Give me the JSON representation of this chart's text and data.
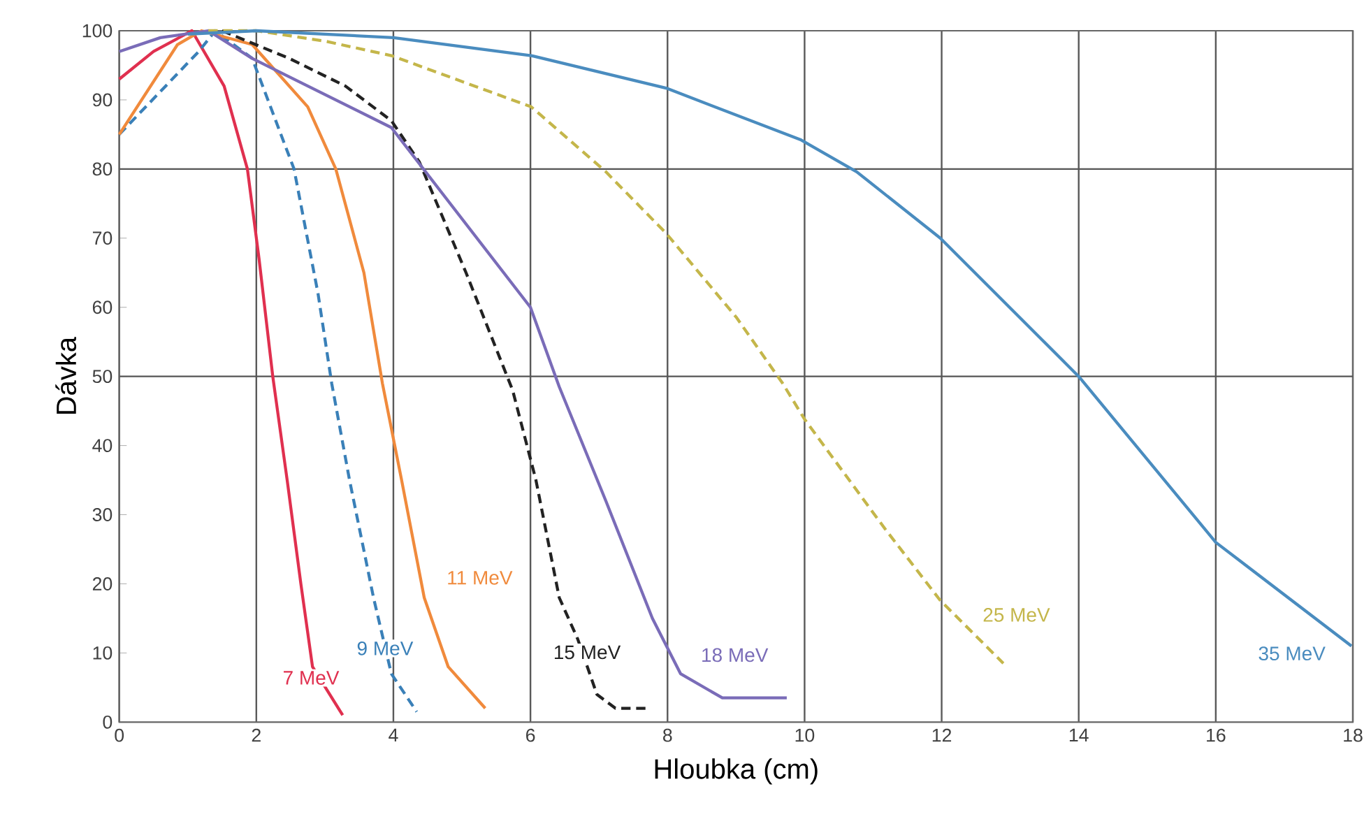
{
  "chart_data": {
    "type": "line",
    "xlabel": "Hloubka (cm)",
    "ylabel": "Dávka",
    "xlim": [
      0,
      18
    ],
    "ylim": [
      0,
      100
    ],
    "xticks": [
      0,
      2,
      4,
      6,
      8,
      10,
      12,
      14,
      16,
      18
    ],
    "yticks": [
      0,
      10,
      20,
      30,
      40,
      50,
      60,
      70,
      80,
      90,
      100
    ],
    "grid": "x",
    "ref_lines": [
      {
        "axis": "y",
        "value": 50,
        "color": "#555555"
      },
      {
        "axis": "y",
        "value": 80,
        "color": "#555555"
      }
    ],
    "series": [
      {
        "name": "7 MeV",
        "color": "#e0304f",
        "line_style": "solid",
        "x": [
          0,
          0.5,
          1.06,
          1.53,
          1.87,
          2.04,
          2.24,
          2.45,
          2.65,
          2.82,
          3.26
        ],
        "values": [
          93,
          97,
          100,
          92,
          80,
          67,
          50,
          35,
          20,
          8,
          1
        ]
      },
      {
        "name": "9 MeV",
        "color": "#3a80b8",
        "line_style": "dashed",
        "x": [
          0,
          1.16,
          1.4,
          1.94,
          2.55,
          2.9,
          3.1,
          3.36,
          3.71,
          3.97,
          4.34
        ],
        "values": [
          85,
          97,
          100,
          96,
          80,
          62,
          49,
          35,
          18,
          7,
          1.5
        ]
      },
      {
        "name": "11 MeV",
        "color": "#f08a3c",
        "line_style": "solid",
        "x": [
          0,
          0.85,
          1.2,
          1.94,
          2.75,
          3.16,
          3.57,
          3.84,
          4.12,
          4.45,
          4.8,
          5.34
        ],
        "values": [
          85,
          98,
          100,
          98,
          89,
          80,
          65,
          49,
          35,
          18,
          8,
          2
        ]
      },
      {
        "name": "15 MeV",
        "color": "#222222",
        "line_style": "dashed",
        "x": [
          1.5,
          2.48,
          3.3,
          3.97,
          4.38,
          5.06,
          5.74,
          6.08,
          6.42,
          6.69,
          6.97,
          7.24,
          7.75
        ],
        "values": [
          100,
          96,
          92,
          87,
          81,
          65,
          48,
          35,
          18,
          12,
          4,
          2,
          2
        ]
      },
      {
        "name": "18 MeV",
        "color": "#7a6cb8",
        "line_style": "solid",
        "x": [
          0,
          0.6,
          1.3,
          1.94,
          3.97,
          6.0,
          6.42,
          7.1,
          7.78,
          8.19,
          8.8,
          9.74
        ],
        "values": [
          97,
          99,
          100,
          96,
          86,
          60,
          48.5,
          32,
          15,
          7,
          3.5,
          3.5
        ]
      },
      {
        "name": "25 MeV",
        "color": "#c4b64a",
        "line_style": "dashed",
        "x": [
          1.3,
          2,
          3,
          3.97,
          6.01,
          7.1,
          7.98,
          9.0,
          9.68,
          10.0,
          11.17,
          11.98,
          12.9
        ],
        "values": [
          100,
          100,
          98.5,
          96.4,
          89,
          79.6,
          70.7,
          58.6,
          49,
          43.8,
          28,
          17.6,
          8.5
        ]
      },
      {
        "name": "35 MeV",
        "color": "#4a8cbf",
        "line_style": "solid",
        "x": [
          1,
          2,
          4,
          6.01,
          7.98,
          9.95,
          10.76,
          11.98,
          14.0,
          16.0,
          17.98
        ],
        "values": [
          99.5,
          100,
          99,
          96.4,
          91.7,
          84.2,
          79.6,
          70,
          50,
          26,
          11
        ]
      }
    ]
  }
}
